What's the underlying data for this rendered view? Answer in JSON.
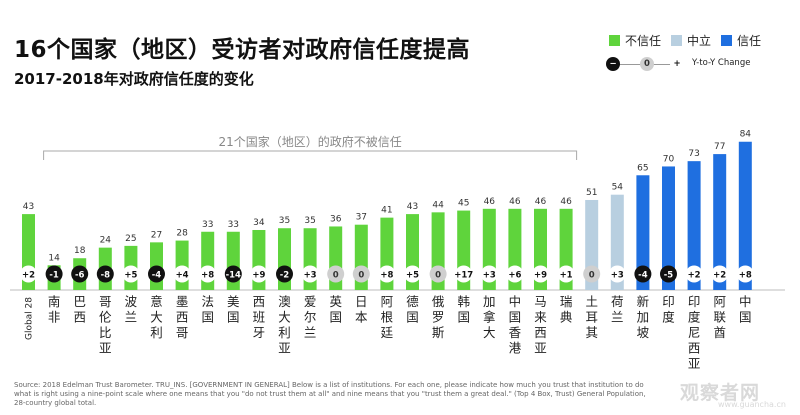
{
  "title": "16个国家（地区）受访者对政府信任度提高",
  "subtitle": "2017-2018年对政府信任度的变化",
  "legend": {
    "distrust": "不信任",
    "neutral": "中立",
    "trust": "信任",
    "yoy_minus": "−",
    "yoy_zero": "0",
    "yoy_plus": "+",
    "yoy_label": "Y-to-Y Change"
  },
  "colors": {
    "distrust": "#5fd43c",
    "neutral": "#b8cfe0",
    "trust": "#1f6fe0"
  },
  "annotation": "21个国家（地区）的政府不被信任",
  "source": "Source: 2018 Edelman Trust Barometer. TRU_INS. [GOVERNMENT IN GENERAL] Below is a list of institutions. For each one, please indicate how much you trust that institution to do what is right using a nine-point scale where one means that you \"do not trust them at all\" and nine means that you \"trust them a great deal.\" (Top 4 Box, Trust) General Population, 28-country global total.",
  "watermark": "观察者网",
  "watermark_url": "www.guancha.cn",
  "chart_data": {
    "type": "bar",
    "ylim": [
      0,
      100
    ],
    "grid": false,
    "legend_position": "top-right",
    "categories": [
      "Global 28",
      "南非",
      "巴西",
      "哥伦比亚",
      "波兰",
      "意大利",
      "墨西哥",
      "法国",
      "美国",
      "西班牙",
      "澳大利亚",
      "爱尔兰",
      "英国",
      "日本",
      "阿根廷",
      "德国",
      "俄罗斯",
      "韩国",
      "加拿大",
      "中国香港",
      "马来西亚",
      "瑞典",
      "土耳其",
      "荷兰",
      "新加坡",
      "印度",
      "印度尼西亚",
      "阿联酋",
      "中国"
    ],
    "values": [
      43,
      14,
      18,
      24,
      25,
      27,
      28,
      33,
      33,
      34,
      35,
      35,
      36,
      37,
      41,
      43,
      44,
      45,
      46,
      46,
      46,
      46,
      51,
      54,
      65,
      70,
      73,
      77,
      84
    ],
    "yoy_change": [
      "+2",
      "-1",
      "-6",
      "-8",
      "+5",
      "-4",
      "+4",
      "+8",
      "-14",
      "+9",
      "-2",
      "+3",
      "0",
      "0",
      "+8",
      "+5",
      "0",
      "+17",
      "+3",
      "+6",
      "+9",
      "+1",
      "0",
      "+3",
      "-4",
      "-5",
      "+2",
      "+2",
      "+8"
    ],
    "group": [
      "distrust",
      "distrust",
      "distrust",
      "distrust",
      "distrust",
      "distrust",
      "distrust",
      "distrust",
      "distrust",
      "distrust",
      "distrust",
      "distrust",
      "distrust",
      "distrust",
      "distrust",
      "distrust",
      "distrust",
      "distrust",
      "distrust",
      "distrust",
      "distrust",
      "distrust",
      "neutral",
      "neutral",
      "trust",
      "trust",
      "trust",
      "trust",
      "trust"
    ]
  }
}
